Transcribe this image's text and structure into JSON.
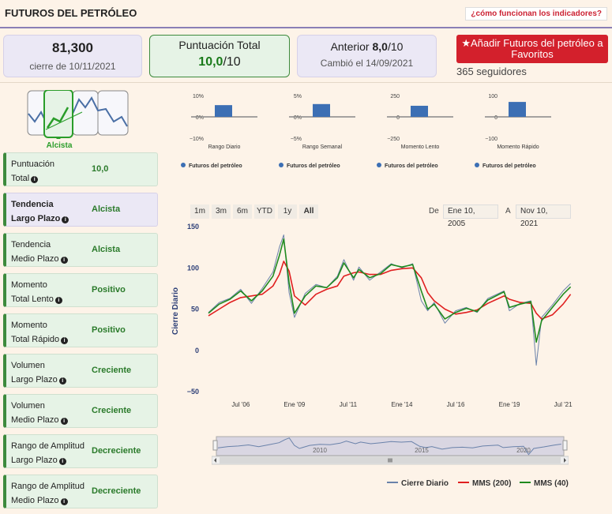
{
  "header": {
    "title": "FUTUROS DEL PETRÓLEO",
    "help_link": "¿cómo funcionan los indicadores?"
  },
  "close_card": {
    "value": "81,300",
    "label": "cierre de 10/11/2021"
  },
  "score_card": {
    "label": "Puntuación Total",
    "value": "10,0",
    "suffix": "/10"
  },
  "previous_card": {
    "label": "Anterior",
    "value": "8,0",
    "suffix": "/10",
    "changed": "Cambió el 14/09/2021"
  },
  "favorite_button": {
    "icon": "star-icon",
    "label": "Añadir Futuros del petróleo a Favoritos"
  },
  "followers": "365 seguidores",
  "trend": {
    "label": "Alcista"
  },
  "indicators": [
    {
      "line1": "Puntuación",
      "line2": "Total",
      "value": "10,0"
    },
    {
      "line1": "Tendencia",
      "line2": "Largo Plazo",
      "value": "Alcista"
    },
    {
      "line1": "Tendencia",
      "line2": "Medio Plazo",
      "value": "Alcista"
    },
    {
      "line1": "Momento",
      "line2": "Total Lento",
      "value": "Positivo"
    },
    {
      "line1": "Momento",
      "line2": "Total Rápido",
      "value": "Positivo"
    },
    {
      "line1": "Volumen",
      "line2": "Largo Plazo",
      "value": "Creciente"
    },
    {
      "line1": "Volumen",
      "line2": "Medio Plazo",
      "value": "Creciente"
    },
    {
      "line1": "Rango de Amplitud",
      "line2": "Largo Plazo",
      "value": "Decreciente"
    },
    {
      "line1": "Rango de Amplitud",
      "line2": "Medio Plazo",
      "value": "Decreciente"
    }
  ],
  "range_buttons": [
    "1m",
    "3m",
    "6m",
    "YTD",
    "1y",
    "All"
  ],
  "date_range": {
    "from_label": "De",
    "from": "Ene 10, 2005",
    "to_label": "A",
    "to": "Nov 10, 2021"
  },
  "colors": {
    "accent_red": "#d3202c",
    "green": "#2a9d2a",
    "bar_blue": "#3c6fb4",
    "line_gray": "#6a82aa"
  },
  "chart_data": [
    {
      "type": "bar",
      "categories": [
        "Rango Diario"
      ],
      "series": [
        {
          "name": "Futuros del petróleo",
          "values": [
            5.5
          ]
        }
      ],
      "yticks": [
        "10%",
        "0%",
        "−10%"
      ],
      "ylim": [
        -10,
        10
      ]
    },
    {
      "type": "bar",
      "categories": [
        "Rango Semanal"
      ],
      "series": [
        {
          "name": "Futuros del petróleo",
          "values": [
            3
          ]
        }
      ],
      "yticks": [
        "5%",
        "0%",
        "−5%"
      ],
      "ylim": [
        -5,
        5
      ]
    },
    {
      "type": "bar",
      "categories": [
        "Momento Lento"
      ],
      "series": [
        {
          "name": "Futuros del petróleo",
          "values": [
            130
          ]
        }
      ],
      "yticks": [
        "250",
        "0",
        "−250"
      ],
      "ylim": [
        -250,
        250
      ]
    },
    {
      "type": "bar",
      "categories": [
        "Momento Rápido"
      ],
      "series": [
        {
          "name": "Futuros del petróleo",
          "values": [
            70
          ]
        }
      ],
      "yticks": [
        "100",
        "0",
        "−100"
      ],
      "ylim": [
        -100,
        100
      ]
    },
    {
      "type": "line",
      "ylabel": "Cierre Diario",
      "ylim": [
        -50,
        150
      ],
      "yticks": [
        "150",
        "100",
        "50",
        "0",
        "−50"
      ],
      "xticks": [
        "Jul '06",
        "Ene '09",
        "Jul '11",
        "Ene '14",
        "Jul '16",
        "Ene '19",
        "Jul '21"
      ],
      "xtick_years": [
        2006.5,
        2009.0,
        2011.5,
        2014.0,
        2016.5,
        2019.0,
        2021.5
      ],
      "xlim": [
        2005.0,
        2021.9
      ],
      "x": [
        2005.0,
        2005.5,
        2006.0,
        2006.5,
        2007.0,
        2007.5,
        2008.0,
        2008.3,
        2008.5,
        2008.75,
        2009.0,
        2009.5,
        2010.0,
        2010.5,
        2011.0,
        2011.3,
        2011.75,
        2012.0,
        2012.5,
        2013.0,
        2013.5,
        2014.0,
        2014.5,
        2014.9,
        2015.2,
        2015.5,
        2016.0,
        2016.5,
        2017.0,
        2017.5,
        2018.0,
        2018.75,
        2019.0,
        2019.5,
        2020.0,
        2020.25,
        2020.5,
        2021.0,
        2021.5,
        2021.85
      ],
      "series": [
        {
          "name": "Cierre Diario",
          "values": [
            46,
            58,
            63,
            74,
            57,
            75,
            95,
            125,
            140,
            70,
            40,
            69,
            80,
            76,
            90,
            110,
            85,
            101,
            85,
            95,
            105,
            100,
            105,
            60,
            48,
            58,
            33,
            48,
            52,
            46,
            63,
            72,
            48,
            57,
            60,
            -18,
            40,
            55,
            72,
            81
          ]
        },
        {
          "name": "MMS (200)",
          "values": [
            42,
            50,
            58,
            64,
            66,
            68,
            78,
            92,
            108,
            96,
            66,
            55,
            68,
            74,
            78,
            90,
            94,
            95,
            92,
            92,
            97,
            99,
            100,
            88,
            70,
            60,
            50,
            44,
            46,
            49,
            57,
            66,
            62,
            58,
            57,
            45,
            38,
            43,
            56,
            68
          ]
        },
        {
          "name": "MMS (40)",
          "values": [
            45,
            56,
            62,
            72,
            60,
            72,
            90,
            115,
            135,
            82,
            45,
            66,
            78,
            76,
            88,
            106,
            88,
            98,
            88,
            93,
            104,
            101,
            104,
            72,
            50,
            56,
            38,
            46,
            51,
            47,
            61,
            71,
            52,
            56,
            59,
            10,
            36,
            52,
            68,
            77
          ]
        }
      ]
    }
  ],
  "navigator": {
    "labels": [
      "2010",
      "2015",
      "2020"
    ]
  }
}
